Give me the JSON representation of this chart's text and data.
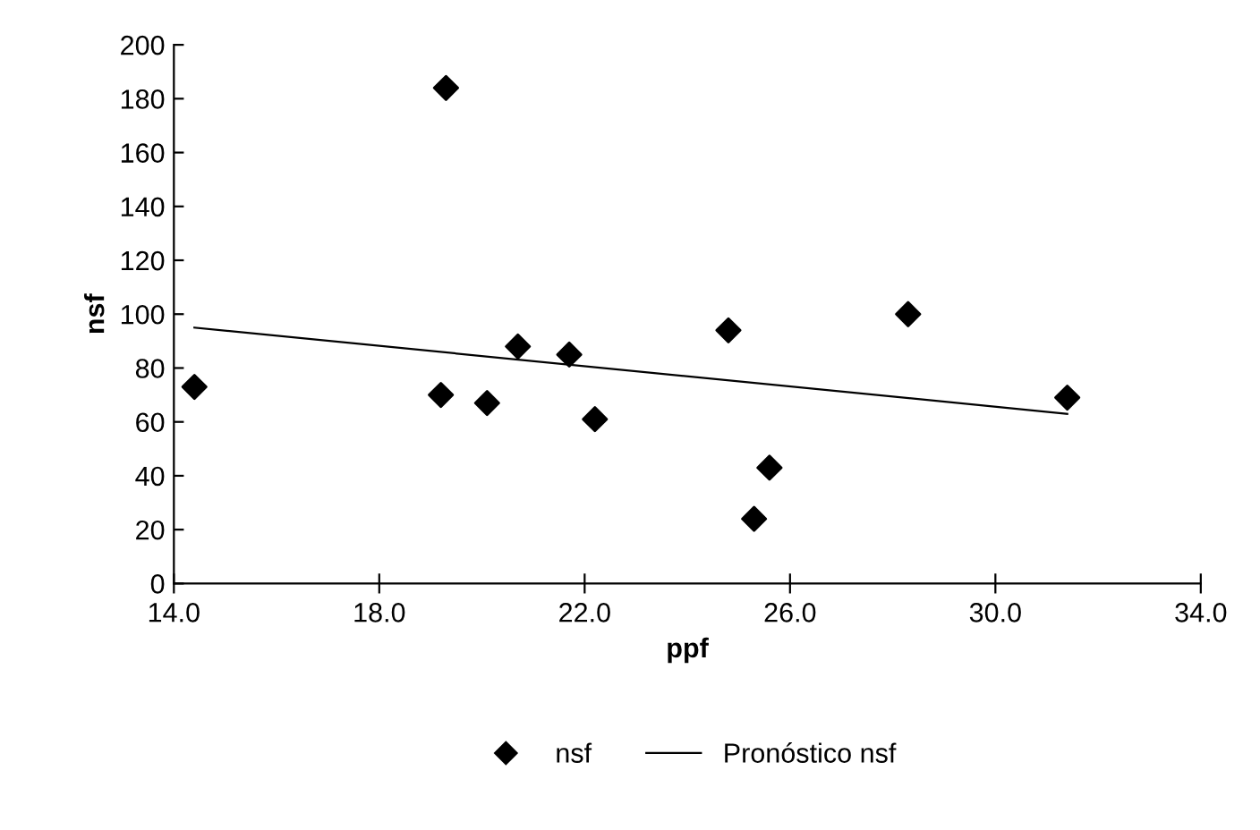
{
  "chart_data": {
    "type": "scatter",
    "xlabel": "ppf",
    "ylabel": "nsf",
    "xlim": [
      14,
      34
    ],
    "xticks": [
      {
        "value": 14,
        "label": "14.0"
      },
      {
        "value": 18,
        "label": "18.0"
      },
      {
        "value": 22,
        "label": "22.0"
      },
      {
        "value": 26,
        "label": "26.0"
      },
      {
        "value": 30,
        "label": "30.0"
      },
      {
        "value": 34,
        "label": "34.0"
      }
    ],
    "ylim": [
      0,
      200
    ],
    "yticks": [
      0,
      20,
      40,
      60,
      80,
      100,
      120,
      140,
      160,
      180,
      200
    ],
    "grid": false,
    "legend": "bottom",
    "series": [
      {
        "name": "nsf",
        "color": "#000000",
        "marker": "diamond",
        "x": [
          14.4,
          19.3,
          19.2,
          20.1,
          20.7,
          21.7,
          22.2,
          24.8,
          25.6,
          25.3,
          28.3,
          31.4
        ],
        "values": [
          73,
          184,
          70,
          67,
          88,
          85,
          61,
          94,
          43,
          24,
          100,
          69
        ]
      },
      {
        "name": "Pronóstico nsf",
        "type": "line",
        "color": "#000000",
        "line_style": "solid",
        "x": [
          14.4,
          31.4
        ],
        "values": [
          95,
          63
        ]
      }
    ]
  }
}
